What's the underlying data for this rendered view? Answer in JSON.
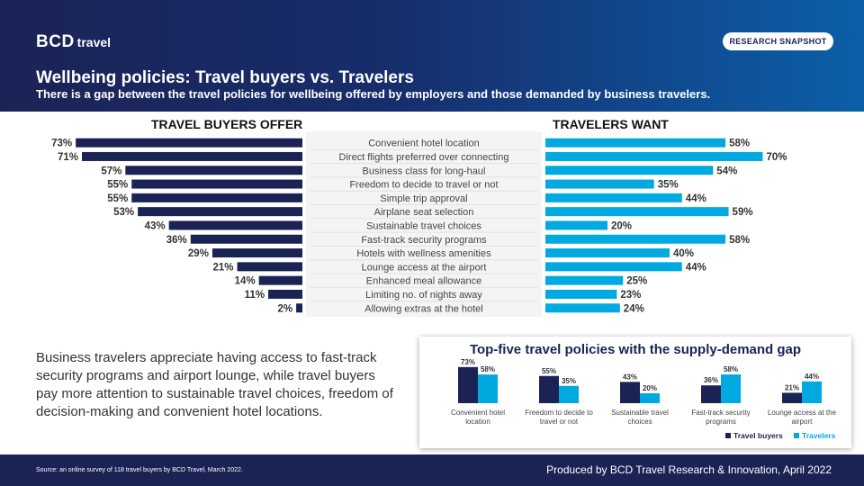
{
  "header": {
    "logo_bcd": "BCD",
    "logo_travel": "travel",
    "badge": "RESEARCH SNAPSHOT",
    "title": "Wellbeing policies: Travel buyers vs. Travelers",
    "subtitle": "There is a gap between the travel policies for wellbeing offered by employers and those demanded by business travelers."
  },
  "colors": {
    "buyers": "#1b2355",
    "travelers": "#00a9e0",
    "header_dark": "#1b2355",
    "header_light": "#0b5fa8"
  },
  "body_text": "Business travelers appreciate having access to fast-track security programs and airport lounge, while travel buyers pay more attention to sustainable travel choices, freedom of decision-making and convenient hotel locations.",
  "footer": {
    "source": "Source: an online survey of 118 travel buyers by BCD Travel, March 2022.",
    "credit": "Produced by BCD Travel Research & Innovation, April 2022"
  },
  "chart_data": [
    {
      "type": "bar",
      "orientation": "horizontal-butterfly",
      "left_heading": "TRAVEL BUYERS OFFER",
      "right_heading": "TRAVELERS WANT",
      "categories": [
        "Convenient hotel location",
        "Direct flights preferred over connecting",
        "Business class for long-haul",
        "Freedom to decide to travel or not",
        "Simple trip approval",
        "Airplane seat selection",
        "Sustainable travel choices",
        "Fast-track security programs",
        "Hotels with wellness amenities",
        "Lounge access at the airport",
        "Enhanced meal allowance",
        "Limiting no. of nights away",
        "Allowing extras at the hotel"
      ],
      "series": [
        {
          "name": "Travel buyers offer",
          "values": [
            73,
            71,
            57,
            55,
            55,
            53,
            43,
            36,
            29,
            21,
            14,
            11,
            2
          ]
        },
        {
          "name": "Travelers want",
          "values": [
            58,
            70,
            54,
            35,
            44,
            59,
            20,
            58,
            40,
            44,
            25,
            23,
            24
          ]
        }
      ],
      "unit": "%",
      "xlim": [
        0,
        100
      ]
    },
    {
      "type": "bar",
      "title": "Top-five travel policies with the supply-demand gap",
      "categories": [
        [
          "Convenient hotel",
          "location"
        ],
        [
          "Freedom to decide to",
          "travel or not"
        ],
        [
          "Sustainable travel",
          "choices"
        ],
        [
          "Fast-track security",
          "programs"
        ],
        [
          "Lounge access at the",
          "airport"
        ]
      ],
      "series": [
        {
          "name": "Travel buyers",
          "values": [
            73,
            55,
            43,
            36,
            21
          ]
        },
        {
          "name": "Travelers",
          "values": [
            58,
            35,
            20,
            58,
            44
          ]
        }
      ],
      "unit": "%",
      "ylim": [
        0,
        80
      ],
      "legend": "bottom-right"
    }
  ]
}
